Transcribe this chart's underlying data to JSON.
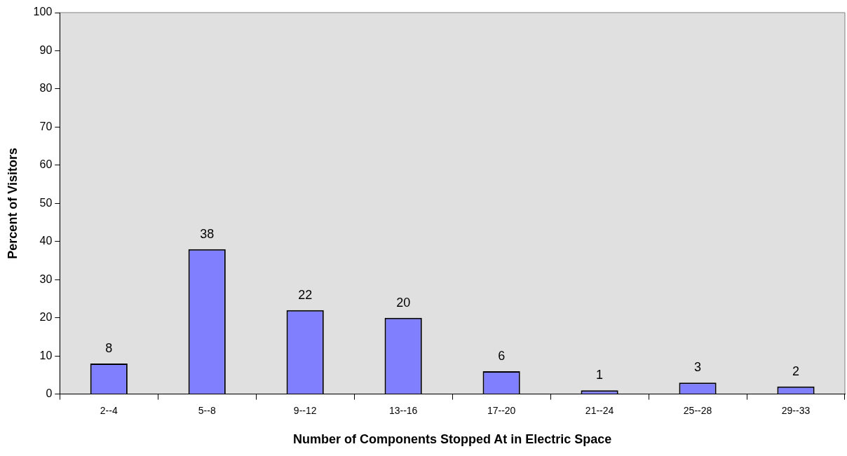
{
  "chart_data": {
    "type": "bar",
    "xlabel": "Number of Components Stopped At in Electric Space",
    "ylabel": "Percent of Visitors",
    "categories": [
      "2--4",
      "5--8",
      "9--12",
      "13--16",
      "17--20",
      "21--24",
      "25--28",
      "29--33"
    ],
    "values": [
      8,
      38,
      22,
      20,
      6,
      1,
      3,
      2
    ],
    "color": "#8080ff",
    "ylim": [
      0,
      100
    ],
    "yticks": [
      0,
      10,
      20,
      30,
      40,
      50,
      60,
      70,
      80,
      90,
      100
    ],
    "grid": false,
    "legend": false,
    "data_labels": true
  }
}
